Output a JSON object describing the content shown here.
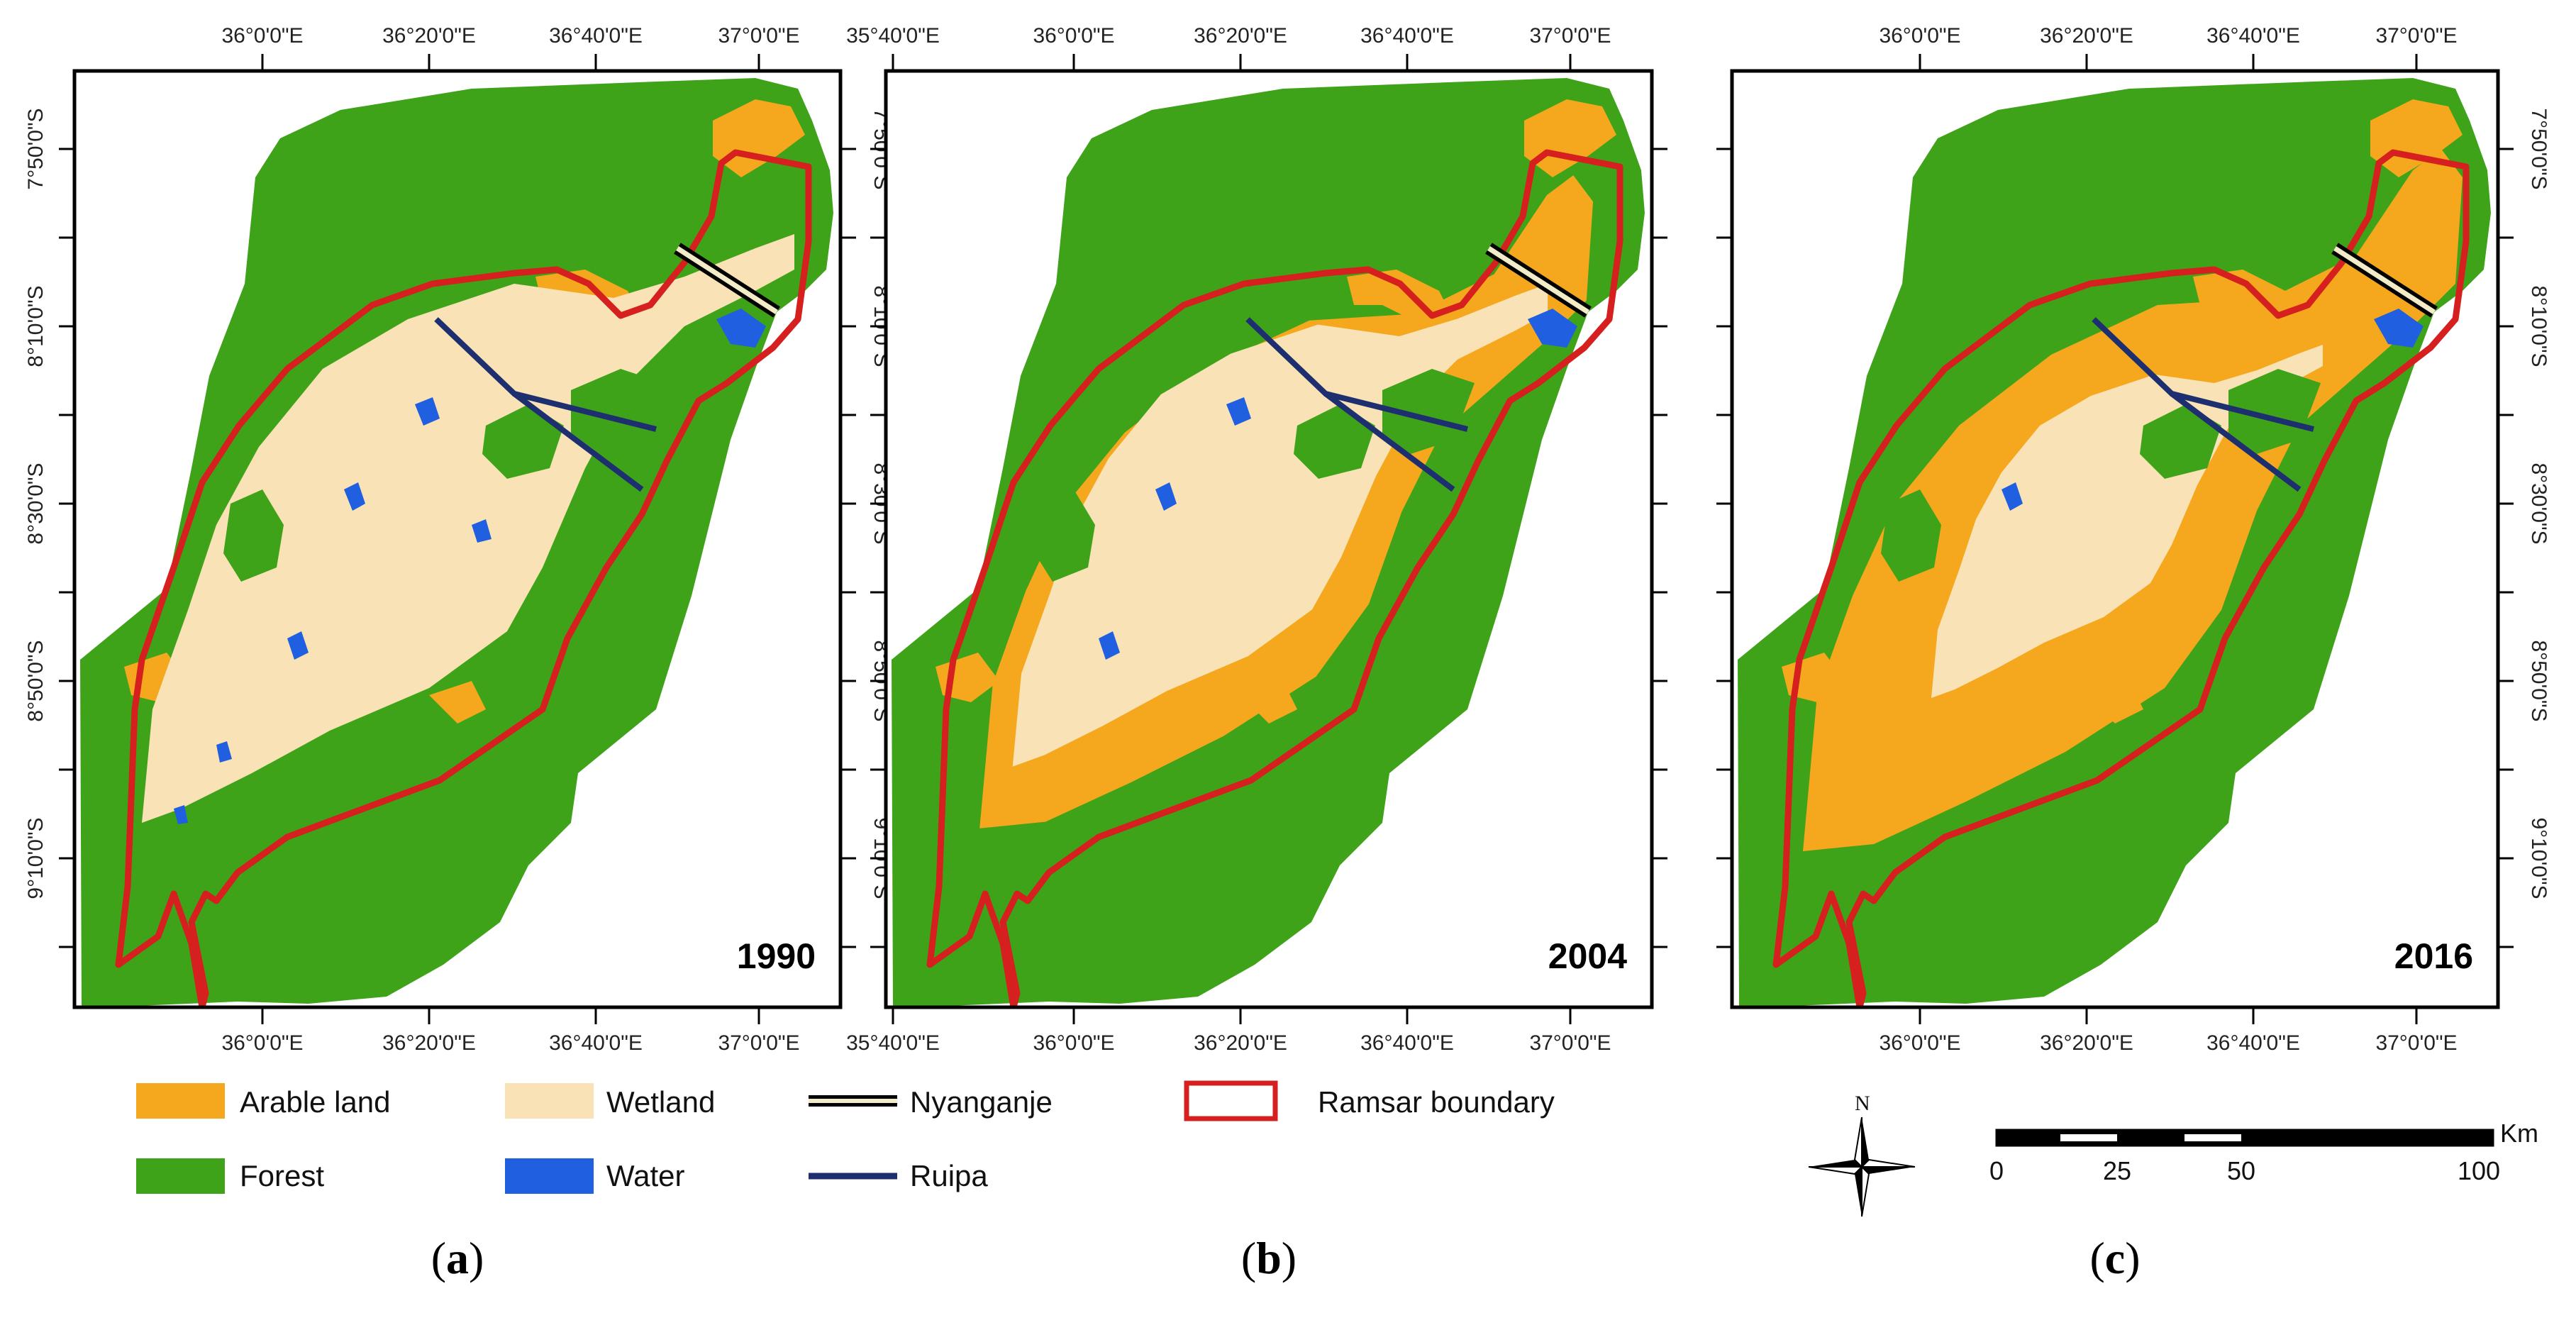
{
  "panels": [
    {
      "id": "a",
      "year": "1990",
      "caption_letter": "a",
      "top_ticks": [
        "36°0'0\"E",
        "36°20'0\"E",
        "36°40'0\"E",
        "37°0'0\"E"
      ],
      "bottom_ticks": [
        "36°0'0\"E",
        "36°20'0\"E",
        "36°40'0\"E",
        "37°0'0\"E"
      ],
      "right_ticks": [
        "7°50'0\"S",
        "8°10'0\"S",
        "8°30'0\"S",
        "8°50'0\"S",
        "9°10'0\"S"
      ],
      "wetland_scale": 1.0,
      "arable_scale": 0.25,
      "water_level": 1.0
    },
    {
      "id": "b",
      "year": "2004",
      "caption_letter": "b",
      "top_ticks": [
        "35°40'0\"E",
        "36°0'0\"E",
        "36°20'0\"E",
        "36°40'0\"E",
        "37°0'0\"E"
      ],
      "bottom_ticks": [
        "35°40'0\"E",
        "36°0'0\"E",
        "36°20'0\"E",
        "36°40'0\"E",
        "37°0'0\"E"
      ],
      "right_ticks": [],
      "wetland_scale": 0.82,
      "arable_scale": 0.6,
      "water_level": 0.5
    },
    {
      "id": "c",
      "year": "2016",
      "caption_letter": "c",
      "top_ticks": [
        "36°0'0\"E",
        "36°20'0\"E",
        "36°40'0\"E",
        "37°0'0\"E"
      ],
      "bottom_ticks": [
        "36°0'0\"E",
        "36°20'0\"E",
        "36°40'0\"E",
        "37°0'0\"E"
      ],
      "right_ticks": [
        "7°50'0\"S",
        "8°10'0\"S",
        "8°30'0\"S",
        "8°50'0\"S",
        "9°10'0\"S"
      ],
      "wetland_scale": 0.6,
      "arable_scale": 1.0,
      "water_level": 0.3
    }
  ],
  "left_ticks": [
    "7°50'0\"S",
    "8°10'0\"S",
    "8°30'0\"S",
    "8°50'0\"S",
    "9°10'0\"S"
  ],
  "legend": [
    {
      "key": "arable",
      "label": "Arable land",
      "kind": "swatch",
      "color": "#f5a81e"
    },
    {
      "key": "forest",
      "label": "Forest",
      "kind": "swatch",
      "color": "#3fa31a"
    },
    {
      "key": "wetland",
      "label": "Wetland",
      "kind": "swatch",
      "color": "#f9e2b5"
    },
    {
      "key": "water",
      "label": "Water",
      "kind": "swatch",
      "color": "#1f5fe0"
    },
    {
      "key": "nyanganje",
      "label": "Nyanganje",
      "kind": "rail",
      "color": "#000000"
    },
    {
      "key": "ruipa",
      "label": "Ruipa",
      "kind": "line",
      "color": "#1d2f6e"
    },
    {
      "key": "ramsar",
      "label": "Ramsar boundary",
      "kind": "outline",
      "color": "#d61f1f"
    }
  ],
  "scale_bar": {
    "unit": "Km",
    "labels": [
      "0",
      "25",
      "50",
      "100"
    ]
  },
  "north_arrow": {
    "label": "N"
  },
  "colors": {
    "forest": "#3fa31a",
    "arable": "#f5a81e",
    "wetland": "#f9e2b5",
    "water": "#1f5fe0",
    "ramsar": "#d61f1f",
    "ruipa": "#1d2f6e",
    "nyanganje_fill": "#f2ecc8"
  }
}
